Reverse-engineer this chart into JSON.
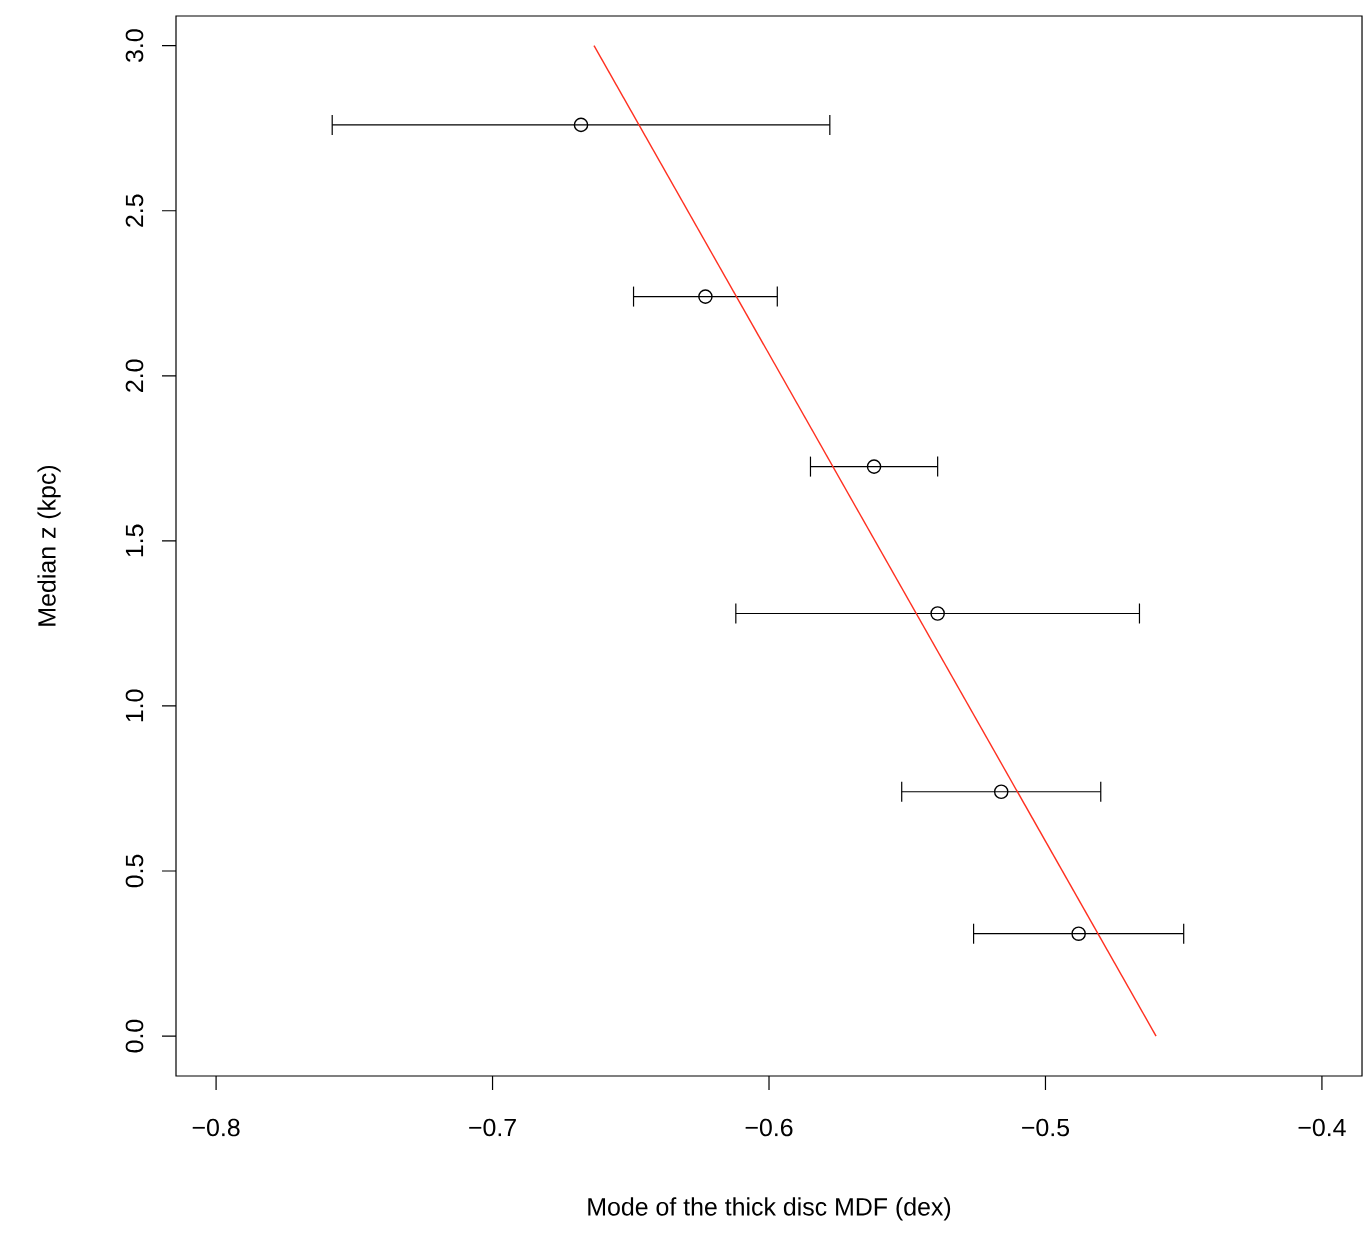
{
  "chart_data": {
    "type": "scatter",
    "xlabel": "Mode of the thick disc MDF (dex)",
    "ylabel": "Median z (kpc)",
    "xlim": [
      -0.8145,
      -0.3855
    ],
    "ylim": [
      -0.121,
      3.09
    ],
    "xticks": [
      {
        "value": -0.8,
        "label": "−0.8"
      },
      {
        "value": -0.7,
        "label": "−0.7"
      },
      {
        "value": -0.6,
        "label": "−0.6"
      },
      {
        "value": -0.5,
        "label": "−0.5"
      },
      {
        "value": -0.4,
        "label": "−0.4"
      }
    ],
    "yticks": [
      {
        "value": 0,
        "label": "0.0"
      },
      {
        "value": 0.5,
        "label": "0.5"
      },
      {
        "value": 1,
        "label": "1.0"
      },
      {
        "value": 1.5,
        "label": "1.5"
      },
      {
        "value": 2,
        "label": "2.0"
      },
      {
        "value": 2.5,
        "label": "2.5"
      },
      {
        "value": 3,
        "label": "3.0"
      }
    ],
    "grid": false,
    "series": [
      {
        "color": "#000000",
        "marker": "circle",
        "x": [
          -0.668,
          -0.623,
          -0.562,
          -0.539,
          -0.516,
          -0.488
        ],
        "values": [
          2.76,
          2.24,
          1.725,
          1.28,
          0.74,
          0.31
        ],
        "xerrors": [
          [
            -0.758,
            -0.578
          ],
          [
            -0.649,
            -0.597
          ],
          [
            -0.585,
            -0.539
          ],
          [
            -0.612,
            -0.466
          ],
          [
            -0.552,
            -0.48
          ],
          [
            -0.526,
            -0.45
          ]
        ]
      },
      {
        "type": "line",
        "color": "#ff3020",
        "marker": "none",
        "line_style": "solid",
        "x": [
          -0.6633,
          -0.46
        ],
        "values": [
          3.0,
          0.0
        ]
      }
    ]
  }
}
